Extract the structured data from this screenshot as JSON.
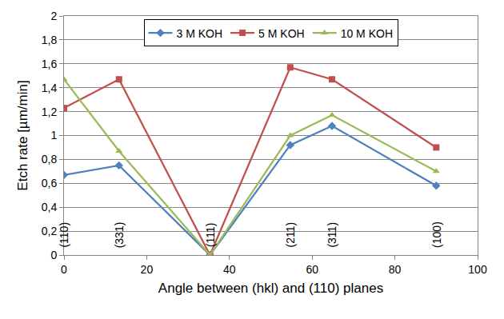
{
  "chart_data": {
    "type": "line",
    "x_label": "Angle between (hkl) and (110) planes",
    "y_label": "Etch rate [µm/min]",
    "x": [
      0,
      13.3,
      35.3,
      54.7,
      64.8,
      90
    ],
    "series": [
      {
        "name": "3 M KOH",
        "color": "#4F81BD",
        "marker": "diamond",
        "line_style": "solid",
        "values": [
          0.67,
          0.75,
          0,
          0.92,
          1.08,
          0.58
        ]
      },
      {
        "name": "5 M KOH",
        "color": "#C0504D",
        "marker": "square",
        "line_style": "solid",
        "values": [
          1.23,
          1.47,
          0,
          1.57,
          1.47,
          0.9
        ]
      },
      {
        "name": "10 M KOH",
        "color": "#9BBB59",
        "marker": "triangle-up",
        "line_style": "solid",
        "values": [
          1.47,
          0.87,
          0,
          1.0,
          1.17,
          0.7
        ]
      }
    ],
    "xlim": [
      0,
      100
    ],
    "xticks": [
      0,
      20,
      40,
      60,
      80,
      100
    ],
    "ylim": [
      0,
      2
    ],
    "yticks": [
      0,
      {
        "value": 0.2,
        "label": "0,2"
      },
      {
        "value": 0.4,
        "label": "0,4"
      },
      {
        "value": 0.6,
        "label": "0,6"
      },
      {
        "value": 0.8,
        "label": "0,8"
      },
      1,
      {
        "value": 1.2,
        "label": "1,2"
      },
      {
        "value": 1.4,
        "label": "1,4"
      },
      {
        "value": 1.6,
        "label": "1,6"
      },
      {
        "value": 1.8,
        "label": "1,8"
      },
      2
    ],
    "grid": "y",
    "legend": "top",
    "annotations": [
      {
        "text": "(110)",
        "x": 0,
        "y": 0.17
      },
      {
        "text": "(331)",
        "x": 13.3,
        "y": 0.17
      },
      {
        "text": "(111)",
        "x": 35.3,
        "y": 0.17
      },
      {
        "text": "(211)",
        "x": 54.7,
        "y": 0.17
      },
      {
        "text": "(311)",
        "x": 64.8,
        "y": 0.17
      },
      {
        "text": "(100)",
        "x": 90,
        "y": 0.17
      }
    ]
  }
}
